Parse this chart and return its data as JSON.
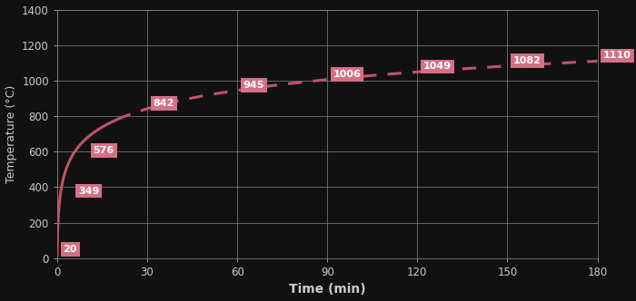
{
  "title": "",
  "xlabel": "Time (min)",
  "ylabel": "Temperature (°C)",
  "background_color": "#111111",
  "plot_bg_color": "#111111",
  "grid_color": "#888888",
  "line_color": "#c0536a",
  "line_width": 2.2,
  "annotation_box_color": "#d47085",
  "annotation_text_color": "#ffffff",
  "annotation_fontsize": 8,
  "axis_label_color": "#cccccc",
  "tick_label_color": "#cccccc",
  "xlim": [
    0,
    180
  ],
  "ylim": [
    0,
    1400
  ],
  "xticks": [
    0,
    30,
    60,
    90,
    120,
    150,
    180
  ],
  "yticks": [
    0,
    200,
    400,
    600,
    800,
    1000,
    1200,
    1400
  ],
  "solid_end": 20,
  "annotations": [
    {
      "t": 0,
      "T": 20,
      "label": "20",
      "xoff": 2,
      "yoff": 5
    },
    {
      "t": 5,
      "T": 349,
      "label": "349",
      "xoff": 2,
      "yoff": 5
    },
    {
      "t": 10,
      "T": 576,
      "label": "576",
      "xoff": 2,
      "yoff": 5
    },
    {
      "t": 30,
      "T": 842,
      "label": "842",
      "xoff": 2,
      "yoff": 5
    },
    {
      "t": 60,
      "T": 945,
      "label": "945",
      "xoff": 2,
      "yoff": 5
    },
    {
      "t": 90,
      "T": 1006,
      "label": "1006",
      "xoff": 2,
      "yoff": 5
    },
    {
      "t": 120,
      "T": 1049,
      "label": "1049",
      "xoff": 2,
      "yoff": 5
    },
    {
      "t": 150,
      "T": 1082,
      "label": "1082",
      "xoff": 2,
      "yoff": 5
    },
    {
      "t": 180,
      "T": 1110,
      "label": "1110",
      "xoff": 2,
      "yoff": 5
    }
  ]
}
